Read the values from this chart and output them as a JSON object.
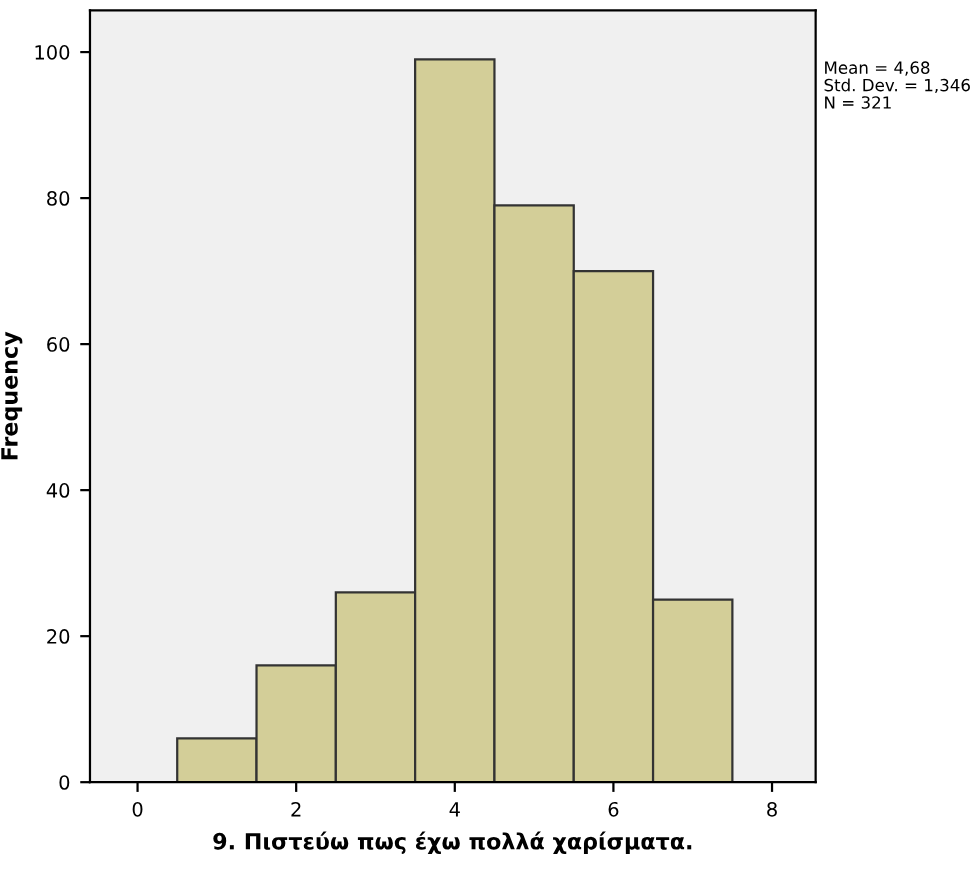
{
  "chart_data": {
    "type": "histogram",
    "xlabel": "9. Πιστεύω πως έχω πολλά χαρίσματα.",
    "ylabel": "Frequency",
    "bins": [
      0.5,
      1.5,
      2.5,
      3.5,
      4.5,
      5.5,
      6.5,
      7.5
    ],
    "values": [
      6,
      16,
      26,
      99,
      79,
      70,
      25
    ],
    "color": "#d3ce98",
    "xlim": [
      -0.6,
      8.55
    ],
    "xticks": [
      0,
      2,
      4,
      6,
      8
    ],
    "ylim": [
      0,
      105.7
    ],
    "yticks": [
      0,
      20,
      40,
      60,
      80,
      100
    ],
    "grid": false,
    "annotations": [
      "Mean = 4,68",
      "Std. Dev. = 1,346",
      "N = 321"
    ]
  }
}
